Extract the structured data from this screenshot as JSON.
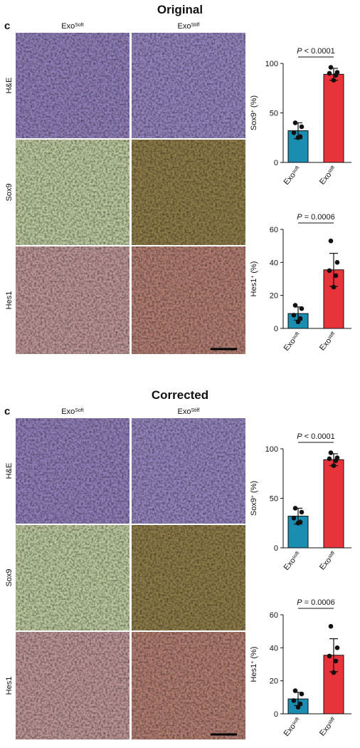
{
  "panels": [
    {
      "title": "Original",
      "label": "c",
      "columns": [
        {
          "base": "Exo",
          "sup": "Soft"
        },
        {
          "base": "Exo",
          "sup": "Stiff"
        }
      ],
      "rows": [
        "H&E",
        "Sox9",
        "Hes1"
      ],
      "charts": [
        {
          "type": "bar",
          "ylabel": {
            "base": "Sox9",
            "sup": "+",
            "tail": "(%)"
          },
          "categories": [
            {
              "base": "Exo",
              "sup": "soft"
            },
            {
              "base": "Exo",
              "sup": "stiff"
            }
          ],
          "values": [
            32,
            89
          ],
          "errors": [
            8,
            6
          ],
          "points": [
            [
              40,
              36,
              30,
              26,
              25
            ],
            [
              96,
              91,
              90,
              88,
              83
            ]
          ],
          "colors": [
            "#1b8db0",
            "#e8333a"
          ],
          "annotation": {
            "italic": "P",
            "text": "< 0.0001"
          },
          "ylim": [
            0,
            100
          ],
          "yticks": [
            0,
            50,
            100
          ]
        },
        {
          "type": "bar",
          "ylabel": {
            "base": "Hes1",
            "sup": "+",
            "tail": "(%)"
          },
          "categories": [
            {
              "base": "Exo",
              "sup": "soft"
            },
            {
              "base": "Exo",
              "sup": "stiff"
            }
          ],
          "values": [
            9,
            35.5
          ],
          "errors": [
            4,
            10
          ],
          "points": [
            [
              14,
              12,
              8,
              6,
              4
            ],
            [
              53,
              40,
              35,
              32,
              25
            ]
          ],
          "colors": [
            "#1b8db0",
            "#e8333a"
          ],
          "annotation": {
            "italic": "P",
            "text": "= 0.0006"
          },
          "ylim": [
            0,
            60
          ],
          "yticks": [
            0,
            20,
            40,
            60
          ]
        }
      ]
    },
    {
      "title": "Corrected",
      "label": "c",
      "columns": [
        {
          "base": "Exo",
          "sup": "Soft"
        },
        {
          "base": "Exo",
          "sup": "Stiff"
        }
      ],
      "rows": [
        "H&E",
        "Sox9",
        "Hes1"
      ],
      "charts": [
        {
          "type": "bar",
          "ylabel": {
            "base": "Sox9",
            "sup": "+",
            "tail": "(%)"
          },
          "categories": [
            {
              "base": "Exo",
              "sup": "soft"
            },
            {
              "base": "Exo",
              "sup": "stiff"
            }
          ],
          "values": [
            32,
            89
          ],
          "errors": [
            8,
            6
          ],
          "points": [
            [
              40,
              36,
              30,
              26,
              25
            ],
            [
              96,
              91,
              90,
              88,
              83
            ]
          ],
          "colors": [
            "#1b8db0",
            "#e8333a"
          ],
          "annotation": {
            "italic": "P",
            "text": "< 0.0001"
          },
          "ylim": [
            0,
            100
          ],
          "yticks": [
            0,
            50,
            100
          ]
        },
        {
          "type": "bar",
          "ylabel": {
            "base": "Hes1",
            "sup": "+",
            "tail": "(%)"
          },
          "categories": [
            {
              "base": "Exo",
              "sup": "soft"
            },
            {
              "base": "Exo",
              "sup": "stiff"
            }
          ],
          "values": [
            9,
            35.5
          ],
          "errors": [
            4,
            10
          ],
          "points": [
            [
              14,
              12,
              8,
              6,
              4
            ],
            [
              53,
              40,
              35,
              32,
              25
            ]
          ],
          "colors": [
            "#1b8db0",
            "#e8333a"
          ],
          "annotation": {
            "italic": "P",
            "text": "= 0.0006"
          },
          "ylim": [
            0,
            60
          ],
          "yticks": [
            0,
            20,
            40,
            60
          ]
        }
      ]
    }
  ]
}
